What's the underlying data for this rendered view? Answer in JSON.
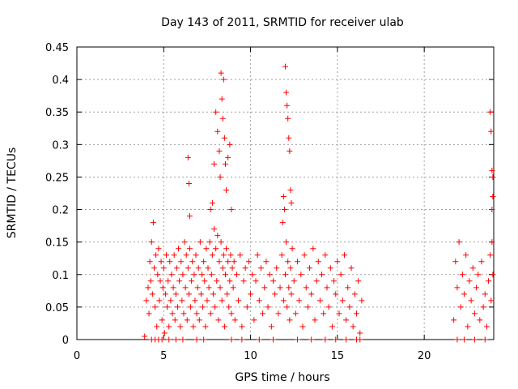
{
  "chart_data": {
    "type": "scatter",
    "title": "Day 143 of 2011, SRMTID for receiver ulab",
    "xlabel": "GPS time / hours",
    "ylabel": "SRMTID / TECUs",
    "xlim": [
      0,
      24
    ],
    "ylim": [
      0,
      0.45
    ],
    "xticks": [
      0,
      5,
      10,
      15,
      20
    ],
    "xtick_labels": [
      "0",
      "5",
      "10",
      "15",
      "20"
    ],
    "yticks": [
      0,
      0.05,
      0.1,
      0.15,
      0.2,
      0.25,
      0.3,
      0.35,
      0.4,
      0.45
    ],
    "ytick_labels": [
      "0",
      "0.05",
      "0.1",
      "0.15",
      "0.2",
      "0.25",
      "0.3",
      "0.35",
      "0.4",
      "0.45"
    ],
    "grid": true,
    "marker": "+",
    "color": "#ff0000",
    "series": [
      {
        "name": "SRMTID",
        "x": [
          3.9,
          4.0,
          4.1,
          4.15,
          4.2,
          4.25,
          4.3,
          4.35,
          4.4,
          4.45,
          4.5,
          4.55,
          4.6,
          4.65,
          4.7,
          4.75,
          4.8,
          4.85,
          4.9,
          4.95,
          5.0,
          5.05,
          5.1,
          5.15,
          5.2,
          5.25,
          5.3,
          5.35,
          5.4,
          5.45,
          5.5,
          5.55,
          5.6,
          5.65,
          5.7,
          5.75,
          5.8,
          5.85,
          5.9,
          5.95,
          6.0,
          6.05,
          6.1,
          6.15,
          6.2,
          6.25,
          6.3,
          6.35,
          6.4,
          6.45,
          6.5,
          6.55,
          6.6,
          6.65,
          6.7,
          6.75,
          6.8,
          6.85,
          6.9,
          6.95,
          7.0,
          7.05,
          7.1,
          7.15,
          7.2,
          7.25,
          7.3,
          7.35,
          7.4,
          7.45,
          7.5,
          7.55,
          7.6,
          7.65,
          7.7,
          7.75,
          7.8,
          7.85,
          7.9,
          7.95,
          8.0,
          8.05,
          8.1,
          8.15,
          8.2,
          8.25,
          8.3,
          8.35,
          8.4,
          8.45,
          8.5,
          8.55,
          8.6,
          8.65,
          8.7,
          8.75,
          8.8,
          8.85,
          8.9,
          8.95,
          9.0,
          9.05,
          9.1,
          9.2,
          9.3,
          9.4,
          9.5,
          9.6,
          9.7,
          9.8,
          9.9,
          10.0,
          10.1,
          10.2,
          10.3,
          10.4,
          10.5,
          10.6,
          10.7,
          10.8,
          10.9,
          11.0,
          11.1,
          11.2,
          11.3,
          11.4,
          11.5,
          11.6,
          11.7,
          11.8,
          11.9,
          12.0,
          12.05,
          12.1,
          12.15,
          12.2,
          12.25,
          12.3,
          12.35,
          12.4,
          12.5,
          12.6,
          12.7,
          12.8,
          12.9,
          13.0,
          13.1,
          13.2,
          13.3,
          13.4,
          13.5,
          13.6,
          13.7,
          13.8,
          13.9,
          14.0,
          14.1,
          14.2,
          14.3,
          14.4,
          14.5,
          14.6,
          14.7,
          14.8,
          14.9,
          15.0,
          15.1,
          15.2,
          15.3,
          15.4,
          15.5,
          15.6,
          15.7,
          15.8,
          15.9,
          16.0,
          16.1,
          16.2,
          16.3,
          16.4,
          21.7,
          21.8,
          21.9,
          22.0,
          22.1,
          22.2,
          22.3,
          22.4,
          22.5,
          22.6,
          22.7,
          22.8,
          22.9,
          23.0,
          23.1,
          23.2,
          23.3,
          23.4,
          23.5,
          23.6,
          23.7,
          23.8,
          23.85,
          23.9,
          23.95,
          6.4,
          6.45,
          6.5,
          7.7,
          7.8,
          7.9,
          8.0,
          8.1,
          8.2,
          8.25,
          8.3,
          8.35,
          8.4,
          8.45,
          8.5,
          8.55,
          8.6,
          8.7,
          8.8,
          8.9,
          11.85,
          11.9,
          11.95,
          12.0,
          12.05,
          12.1,
          12.15,
          12.2,
          12.25,
          12.3,
          12.35,
          23.8,
          23.85,
          23.9,
          23.95,
          23.95,
          23.9,
          4.3,
          4.5,
          4.7,
          4.9,
          5.3,
          5.7,
          6.1,
          6.9,
          7.3,
          8.9,
          9.5,
          10.5,
          11.3,
          12.7,
          13.5,
          14.3,
          14.9,
          15.5,
          16.1,
          22.3,
          22.9,
          23.5,
          21.9,
          16.3
        ],
        "y": [
          0.005,
          0.06,
          0.08,
          0.04,
          0.12,
          0.09,
          0.15,
          0.07,
          0.18,
          0.11,
          0.05,
          0.13,
          0.02,
          0.1,
          0.14,
          0.06,
          0.09,
          0.12,
          0.03,
          0.08,
          0.11,
          0.01,
          0.07,
          0.13,
          0.05,
          0.09,
          0.02,
          0.12,
          0.06,
          0.1,
          0.04,
          0.08,
          0.13,
          0.03,
          0.07,
          0.11,
          0.05,
          0.14,
          0.09,
          0.02,
          0.12,
          0.06,
          0.1,
          0.04,
          0.15,
          0.08,
          0.13,
          0.03,
          0.11,
          0.07,
          0.14,
          0.05,
          0.09,
          0.12,
          0.02,
          0.1,
          0.06,
          0.13,
          0.04,
          0.08,
          0.11,
          0.03,
          0.15,
          0.07,
          0.1,
          0.05,
          0.12,
          0.09,
          0.02,
          0.14,
          0.06,
          0.11,
          0.08,
          0.15,
          0.04,
          0.1,
          0.13,
          0.07,
          0.17,
          0.05,
          0.14,
          0.09,
          0.16,
          0.03,
          0.12,
          0.08,
          0.15,
          0.06,
          0.11,
          0.13,
          0.02,
          0.1,
          0.14,
          0.07,
          0.12,
          0.05,
          0.09,
          0.13,
          0.04,
          0.11,
          0.08,
          0.12,
          0.03,
          0.1,
          0.06,
          0.13,
          0.02,
          0.09,
          0.11,
          0.05,
          0.12,
          0.07,
          0.1,
          0.03,
          0.09,
          0.13,
          0.06,
          0.11,
          0.04,
          0.08,
          0.12,
          0.05,
          0.1,
          0.02,
          0.09,
          0.07,
          0.11,
          0.04,
          0.08,
          0.13,
          0.06,
          0.1,
          0.15,
          0.05,
          0.12,
          0.08,
          0.03,
          0.11,
          0.07,
          0.14,
          0.09,
          0.04,
          0.12,
          0.06,
          0.1,
          0.02,
          0.13,
          0.08,
          0.05,
          0.11,
          0.07,
          0.14,
          0.03,
          0.09,
          0.12,
          0.06,
          0.1,
          0.04,
          0.13,
          0.08,
          0.05,
          0.11,
          0.02,
          0.09,
          0.07,
          0.12,
          0.04,
          0.1,
          0.06,
          0.13,
          0.03,
          0.08,
          0.05,
          0.11,
          0.02,
          0.07,
          0.04,
          0.09,
          0.01,
          0.06,
          0.03,
          0.12,
          0.08,
          0.15,
          0.05,
          0.1,
          0.07,
          0.13,
          0.02,
          0.09,
          0.06,
          0.11,
          0.04,
          0.08,
          0.1,
          0.03,
          0.12,
          0.05,
          0.07,
          0.02,
          0.09,
          0.13,
          0.06,
          0.15,
          0.1,
          0.28,
          0.24,
          0.19,
          0.2,
          0.21,
          0.27,
          0.35,
          0.32,
          0.29,
          0.25,
          0.41,
          0.37,
          0.34,
          0.4,
          0.31,
          0.27,
          0.23,
          0.28,
          0.3,
          0.2,
          0.18,
          0.22,
          0.2,
          0.42,
          0.38,
          0.36,
          0.34,
          0.31,
          0.29,
          0.23,
          0.21,
          0.35,
          0.32,
          0.26,
          0.25,
          0.22,
          0.2,
          0.0,
          0.0,
          0.0,
          0.0,
          0.0,
          0.0,
          0.0,
          0.0,
          0.0,
          0.0,
          0.0,
          0.0,
          0.0,
          0.0,
          0.0,
          0.0,
          0.0,
          0.0,
          0.0,
          0.0,
          0.0,
          0.0,
          0.0,
          0.0
        ]
      }
    ]
  }
}
